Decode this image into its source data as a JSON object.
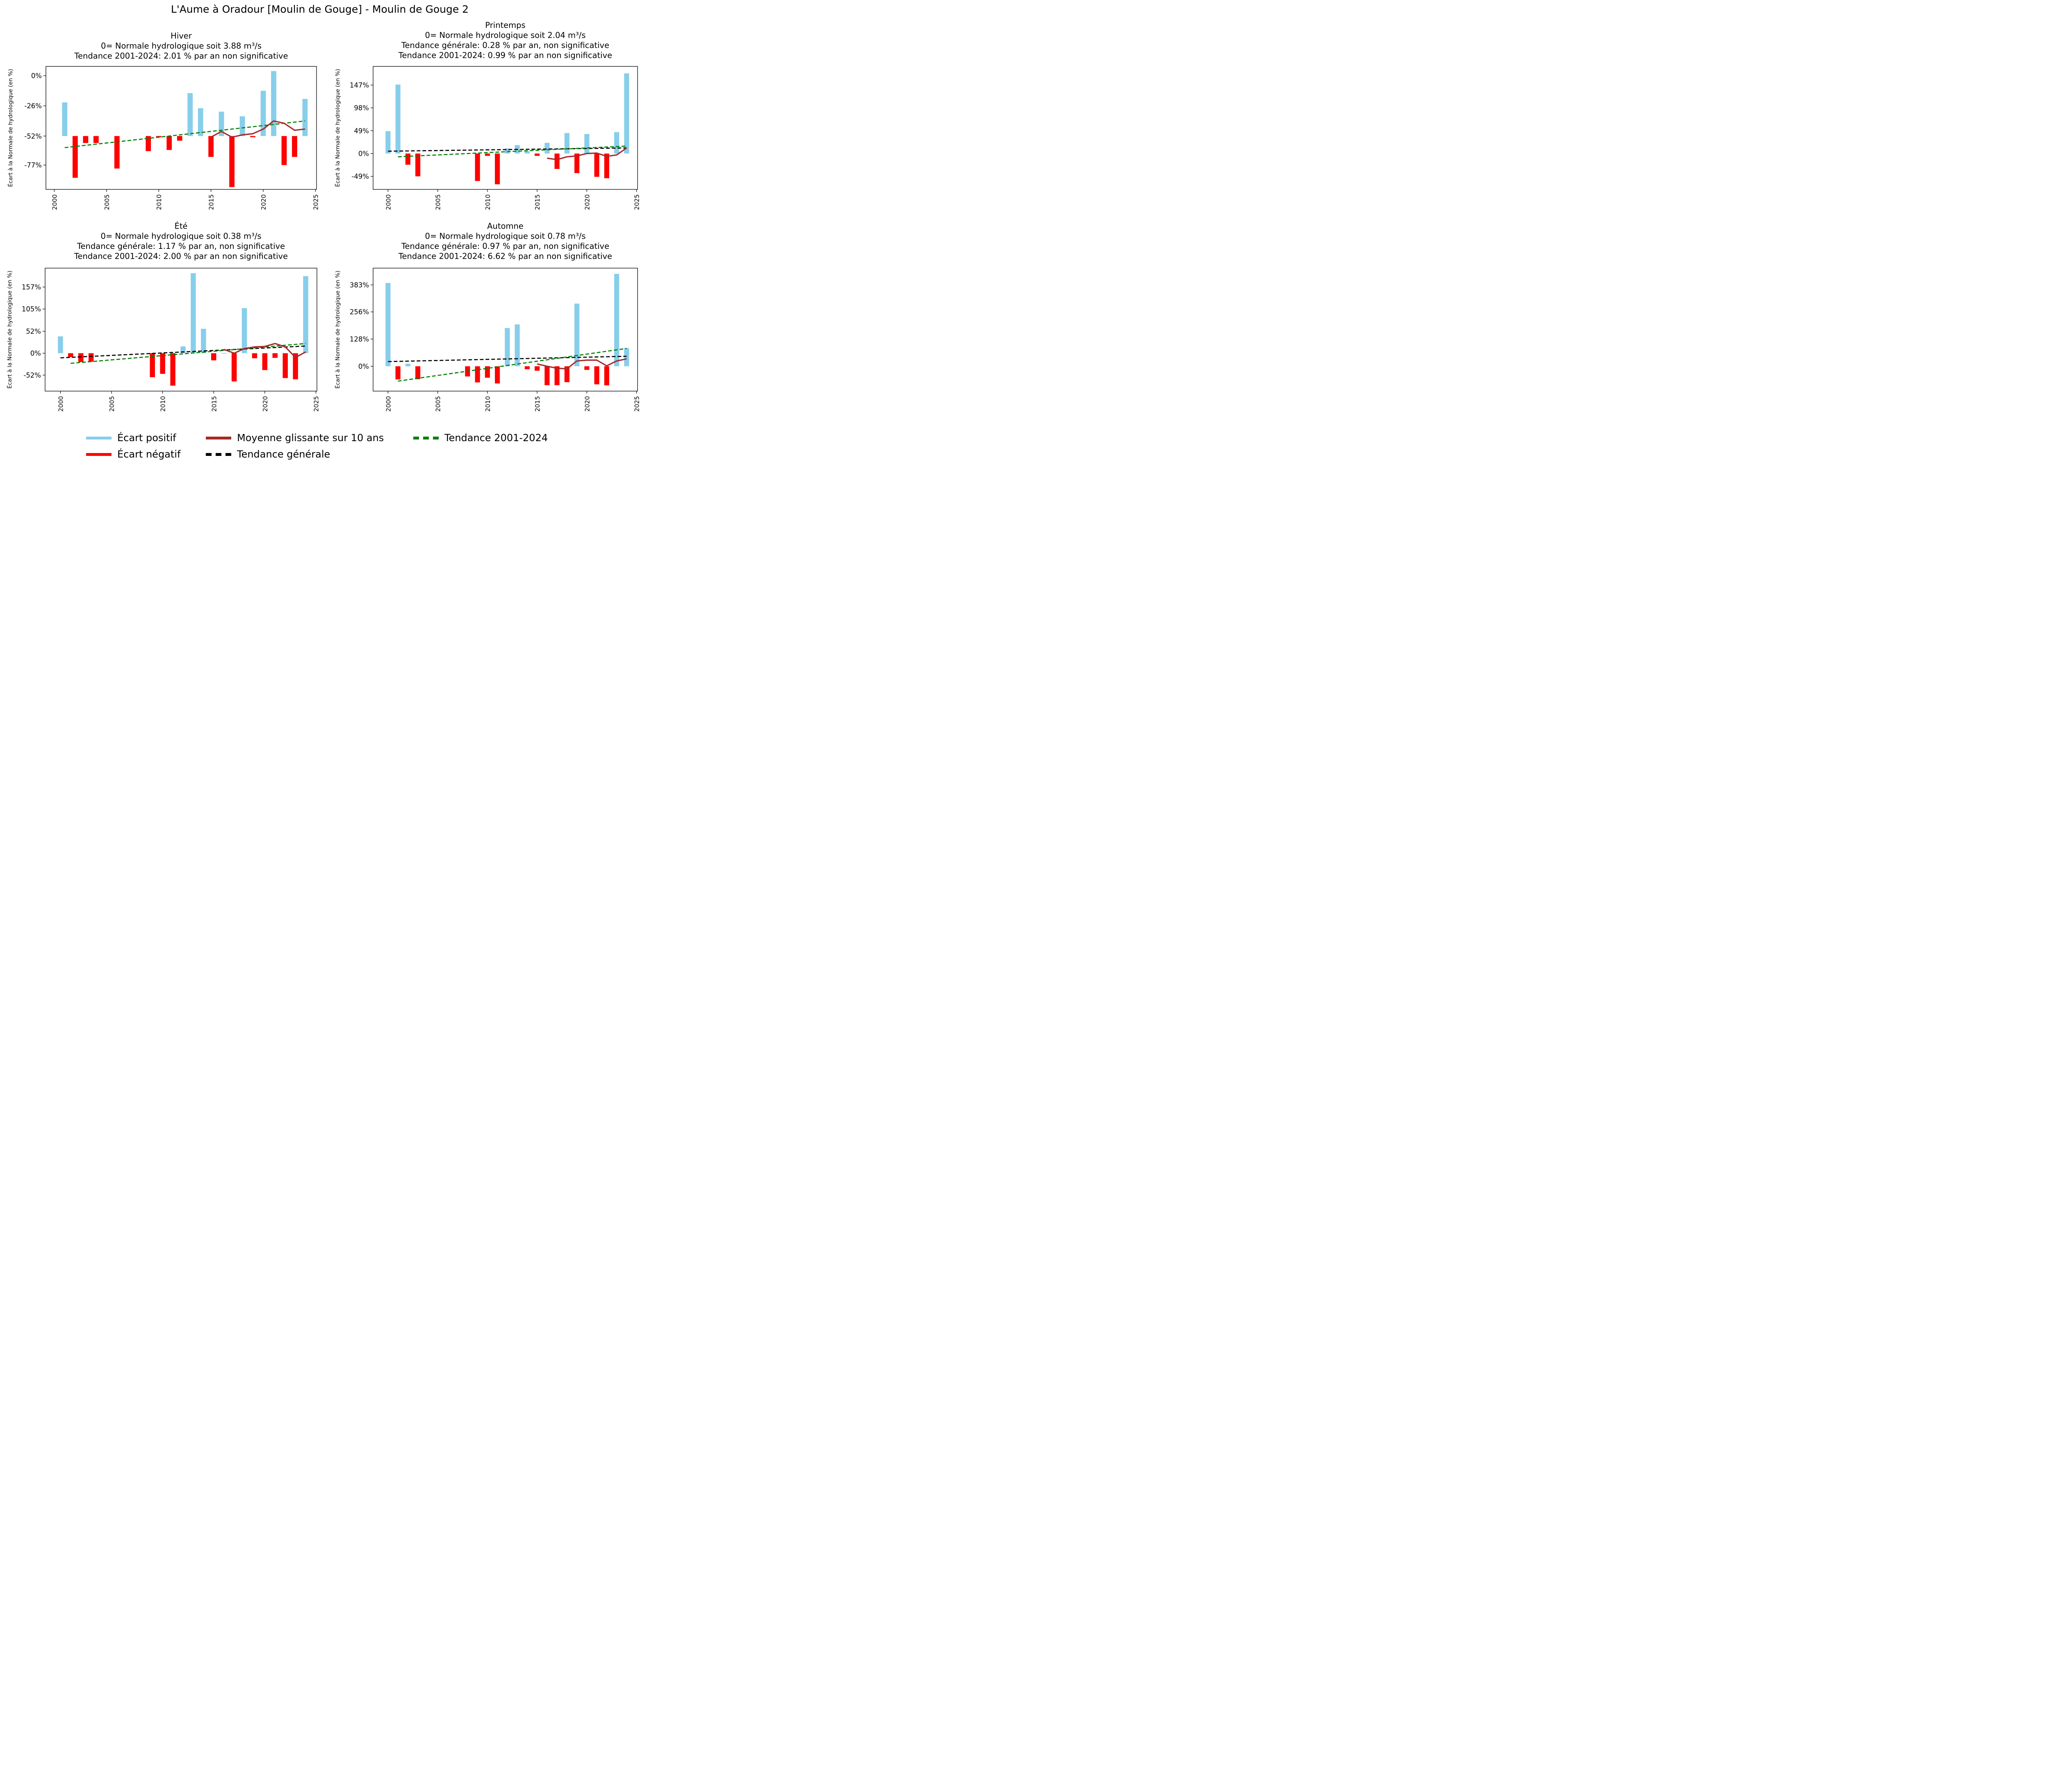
{
  "suptitle": "L'Aume à Oradour [Moulin de Gouge] - Moulin de Gouge 2",
  "colors": {
    "positive": "#87ceeb",
    "negative": "#ff0000",
    "moving_avg": "#a52a2a",
    "trend_general": "#000000",
    "trend_period": "#008000"
  },
  "legend": {
    "items": [
      {
        "label": "Écart positif",
        "key": "positive",
        "style": "solid"
      },
      {
        "label": "Écart négatif",
        "key": "negative",
        "style": "solid"
      },
      {
        "label": "Moyenne glissante sur 10 ans",
        "key": "moving_avg",
        "style": "solid"
      },
      {
        "label": "Tendance générale",
        "key": "trend_general",
        "style": "dashed"
      },
      {
        "label": "Tendance 2001-2024",
        "key": "trend_period",
        "style": "dashed"
      }
    ]
  },
  "chart_data": [
    {
      "type": "bar",
      "title_lines": [
        "Hiver",
        "0= Normale hydrologique soit 3.88 m³/s",
        "Tendance 2001-2024: 2.01 % par an non significative"
      ],
      "ylabel": "Écart à la Normale de hydrologique (en %)",
      "baseline": -52,
      "ylim": [
        -98,
        8
      ],
      "yticks": [
        0,
        -26,
        -52,
        -77
      ],
      "ytick_labels": [
        "0%",
        "-26%",
        "-52%",
        "-77%"
      ],
      "xlim": [
        1999.2,
        2025.1
      ],
      "xticks": [
        2000,
        2005,
        2010,
        2015,
        2020,
        2025
      ],
      "years": [
        2001,
        2002,
        2003,
        2004,
        2006,
        2009,
        2010,
        2011,
        2012,
        2013,
        2014,
        2015,
        2016,
        2017,
        2018,
        2019,
        2020,
        2021,
        2022,
        2023,
        2024
      ],
      "values": [
        -23,
        -88,
        -58,
        -58,
        -80,
        -65,
        -53,
        -64,
        -56,
        -15,
        -28,
        -70,
        -31,
        -96,
        -35,
        -53,
        -13,
        4,
        -77,
        -70,
        -20
      ],
      "moving_avg": {
        "years": [
          2015,
          2016,
          2017,
          2018,
          2019,
          2020,
          2021,
          2022,
          2023,
          2024
        ],
        "values": [
          -53,
          -48,
          -53,
          -51,
          -50,
          -46,
          -39,
          -41,
          -47,
          -46
        ]
      },
      "trend_period": {
        "years": [
          2001,
          2024
        ],
        "values": [
          -62,
          -39
        ]
      }
    },
    {
      "type": "bar",
      "title_lines": [
        "Printemps",
        "0= Normale hydrologique soit 2.04 m³/s",
        "Tendance générale: 0.28 % par an, non significative",
        "Tendance 2001-2024: 0.99 % par an non significative"
      ],
      "ylabel": "Écart à la Normale de hydrologique (en %)",
      "baseline": 0,
      "ylim": [
        -77,
        187
      ],
      "yticks": [
        147,
        98,
        49,
        0,
        -49
      ],
      "ytick_labels": [
        "147%",
        "98%",
        "49%",
        "0%",
        "-49%"
      ],
      "xlim": [
        1998.5,
        2025.1
      ],
      "xticks": [
        2000,
        2005,
        2010,
        2015,
        2020,
        2025
      ],
      "years": [
        2000,
        2001,
        2002,
        2003,
        2009,
        2010,
        2011,
        2012,
        2013,
        2014,
        2015,
        2016,
        2017,
        2018,
        2019,
        2020,
        2021,
        2022,
        2023,
        2024
      ],
      "values": [
        48,
        148,
        -24,
        -49,
        -59,
        -5,
        -66,
        11,
        18,
        5,
        -5,
        23,
        -33,
        44,
        -42,
        42,
        -50,
        -53,
        46,
        172
      ],
      "moving_avg": {
        "years": [
          2016,
          2017,
          2018,
          2019,
          2020,
          2021,
          2022,
          2023,
          2024
        ],
        "values": [
          -10,
          -13,
          -7,
          -5,
          0,
          1,
          -6,
          -3,
          12
        ]
      },
      "trend_general": {
        "years": [
          2000,
          2024
        ],
        "values": [
          5,
          12
        ]
      },
      "trend_period": {
        "years": [
          2001,
          2024
        ],
        "values": [
          -7,
          16
        ]
      }
    },
    {
      "type": "bar",
      "title_lines": [
        "Été",
        "0= Normale hydrologique soit 0.38 m³/s",
        "Tendance générale: 1.17 % par an, non significative",
        "Tendance 2001-2024: 2.00 % par an non significative"
      ],
      "ylabel": "Écart à la Normale de hydrologique (en %)",
      "baseline": 0,
      "ylim": [
        -90,
        202
      ],
      "yticks": [
        157,
        105,
        52,
        0,
        -52
      ],
      "ytick_labels": [
        "157%",
        "105%",
        "52%",
        "0%",
        "-52%"
      ],
      "xlim": [
        1998.5,
        2025.1
      ],
      "xticks": [
        2000,
        2005,
        2010,
        2015,
        2020,
        2025
      ],
      "years": [
        2000,
        2001,
        2002,
        2003,
        2009,
        2010,
        2011,
        2012,
        2013,
        2014,
        2015,
        2016,
        2017,
        2018,
        2019,
        2020,
        2021,
        2022,
        2023,
        2024
      ],
      "values": [
        40,
        -9,
        -21,
        -20,
        -57,
        -49,
        -77,
        16,
        190,
        58,
        -17,
        0.5,
        -67,
        107,
        -12,
        -40,
        -11,
        -59,
        -62,
        183
      ],
      "moving_avg": {
        "years": [
          2016,
          2017,
          2018,
          2019,
          2020,
          2021,
          2022,
          2023,
          2024
        ],
        "values": [
          9,
          0,
          11,
          15,
          16,
          23,
          15,
          -10,
          3
        ]
      },
      "trend_general": {
        "years": [
          2000,
          2024
        ],
        "values": [
          -11,
          17
        ]
      },
      "trend_period": {
        "years": [
          2001,
          2024
        ],
        "values": [
          -24,
          23
        ]
      }
    },
    {
      "type": "bar",
      "title_lines": [
        "Automne",
        "0= Normale hydrologique soit 0.78 m³/s",
        "Tendance générale: 0.97 % par an, non significative",
        "Tendance 2001-2024: 6.62 % par an non significative"
      ],
      "ylabel": "Écart à la Normale de hydrologique (en %)",
      "baseline": 0,
      "ylim": [
        -117,
        462
      ],
      "yticks": [
        383,
        256,
        128,
        0
      ],
      "ytick_labels": [
        "383%",
        "256%",
        "128%",
        "0%"
      ],
      "xlim": [
        1998.5,
        2025.1
      ],
      "xticks": [
        2000,
        2005,
        2010,
        2015,
        2020,
        2025
      ],
      "years": [
        2000,
        2001,
        2002,
        2003,
        2008,
        2009,
        2010,
        2011,
        2012,
        2013,
        2014,
        2015,
        2016,
        2017,
        2018,
        2019,
        2020,
        2021,
        2022,
        2023,
        2024
      ],
      "values": [
        392,
        -62,
        12,
        -61,
        -48,
        -76,
        -54,
        -81,
        180,
        197,
        -14,
        -21,
        -89,
        -89,
        -75,
        295,
        -17,
        -85,
        -90,
        435,
        86
      ],
      "moving_avg": {
        "years": [
          2015,
          2016,
          2017,
          2018,
          2019,
          2020,
          2021,
          2022,
          2023,
          2024
        ],
        "values": [
          11,
          0,
          -9,
          -12,
          25,
          29,
          29,
          2,
          25,
          35
        ]
      },
      "trend_general": {
        "years": [
          2000,
          2024
        ],
        "values": [
          22,
          47
        ]
      },
      "trend_period": {
        "years": [
          2001,
          2024
        ],
        "values": [
          -70,
          84
        ]
      }
    }
  ]
}
